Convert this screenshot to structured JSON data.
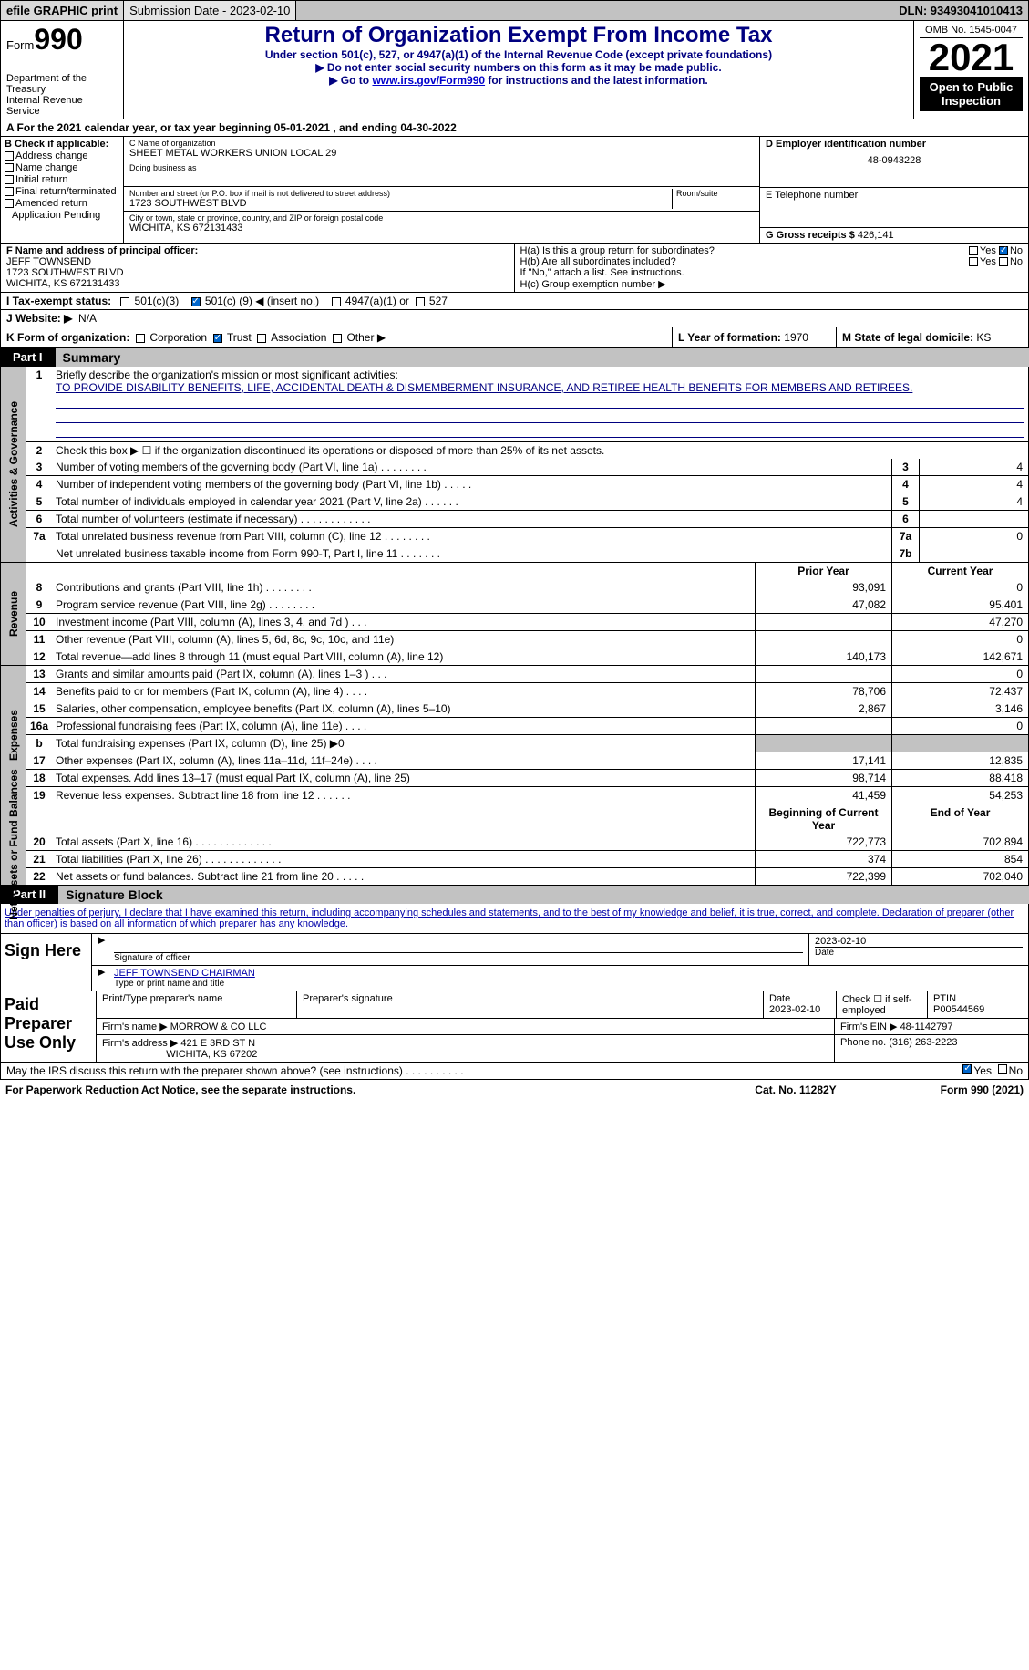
{
  "topbar": {
    "efile": "efile GRAPHIC print",
    "submission_label": "Submission Date - 2023-02-10",
    "dln": "DLN: 93493041010413"
  },
  "header": {
    "form_word": "Form",
    "form_num": "990",
    "dept": "Department of the Treasury",
    "irs": "Internal Revenue Service",
    "title": "Return of Organization Exempt From Income Tax",
    "sub1": "Under section 501(c), 527, or 4947(a)(1) of the Internal Revenue Code (except private foundations)",
    "sub2": "▶ Do not enter social security numbers on this form as it may be made public.",
    "sub3a": "▶ Go to ",
    "sub3b": "www.irs.gov/Form990",
    "sub3c": " for instructions and the latest information.",
    "omb": "OMB No. 1545-0047",
    "year": "2021",
    "otp": "Open to Public Inspection"
  },
  "lineA": "A For the 2021 calendar year, or tax year beginning 05-01-2021    , and ending 04-30-2022",
  "sectionB": {
    "b_title": "B Check if applicable:",
    "checks": [
      "Address change",
      "Name change",
      "Initial return",
      "Final return/terminated",
      "Amended return",
      "Application Pending"
    ],
    "c_label": "C Name of organization",
    "c_name": "SHEET METAL WORKERS UNION LOCAL 29",
    "dba_label": "Doing business as",
    "addr_label": "Number and street (or P.O. box if mail is not delivered to street address)",
    "room_label": "Room/suite",
    "addr": "1723 SOUTHWEST BLVD",
    "city_label": "City or town, state or province, country, and ZIP or foreign postal code",
    "city": "WICHITA, KS  672131433",
    "d_label": "D Employer identification number",
    "ein": "48-0943228",
    "e_label": "E Telephone number",
    "g_label": "G Gross receipts $",
    "g_val": "426,141"
  },
  "rowF": {
    "f_label": "F  Name and address of principal officer:",
    "officer": "JEFF TOWNSEND",
    "addr1": "1723 SOUTHWEST BLVD",
    "addr2": "WICHITA, KS  672131433",
    "ha": "H(a)  Is this a group return for subordinates?",
    "hb": "H(b)  Are all subordinates included?",
    "hb_note": "If \"No,\" attach a list. See instructions.",
    "hc": "H(c)  Group exemption number ▶",
    "yes": "Yes",
    "no": "No"
  },
  "rowI": {
    "label": "I    Tax-exempt status:",
    "o1": "501(c)(3)",
    "o2a": "501(c) (",
    "o2b": "9",
    "o2c": ") ◀ (insert no.)",
    "o3": "4947(a)(1) or",
    "o4": "527"
  },
  "rowJ": {
    "label": "J   Website: ▶",
    "val": "N/A"
  },
  "rowK": {
    "k": "K Form of organization:",
    "corp": "Corporation",
    "trust": "Trust",
    "assoc": "Association",
    "other": "Other ▶",
    "l": "L Year of formation:",
    "l_val": "1970",
    "m": "M State of legal domicile:",
    "m_val": "KS"
  },
  "part1": {
    "part": "Part I",
    "title": "Summary"
  },
  "summary": {
    "l1_label": "Briefly describe the organization's mission or most significant activities:",
    "l1_text": "TO PROVIDE DISABILITY BENEFITS, LIFE, ACCIDENTAL DEATH & DISMEMBERMENT INSURANCE, AND RETIREE HEALTH BENEFITS FOR MEMBERS AND RETIREES.",
    "l2": "Check this box ▶ ☐ if the organization discontinued its operations or disposed of more than 25% of its net assets.",
    "lines": [
      {
        "n": "3",
        "t": "Number of voting members of the governing body (Part VI, line 1a)  .    .    .    .    .    .    .    .",
        "b": "3",
        "v": "4"
      },
      {
        "n": "4",
        "t": "Number of independent voting members of the governing body (Part VI, line 1b)  .    .    .    .    .",
        "b": "4",
        "v": "4"
      },
      {
        "n": "5",
        "t": "Total number of individuals employed in calendar year 2021 (Part V, line 2a)  .    .    .    .    .    .",
        "b": "5",
        "v": "4"
      },
      {
        "n": "6",
        "t": "Total number of volunteers (estimate if necessary)    .    .    .    .    .    .    .    .    .    .    .    .",
        "b": "6",
        "v": ""
      },
      {
        "n": "7a",
        "t": "Total unrelated business revenue from Part VIII, column (C), line 12    .    .    .    .    .    .    .    .",
        "b": "7a",
        "v": "0"
      },
      {
        "n": "",
        "t": "Net unrelated business taxable income from Form 990-T, Part I, line 11  .    .    .    .    .    .    .",
        "b": "7b",
        "v": ""
      }
    ],
    "col_prior": "Prior Year",
    "col_current": "Current Year",
    "rev": [
      {
        "n": "8",
        "t": "Contributions and grants (Part VIII, line 1h)   .    .    .    .    .    .    .    .",
        "p": "93,091",
        "c": "0"
      },
      {
        "n": "9",
        "t": "Program service revenue (Part VIII, line 2g)  .    .    .    .    .    .    .    .",
        "p": "47,082",
        "c": "95,401"
      },
      {
        "n": "10",
        "t": "Investment income (Part VIII, column (A), lines 3, 4, and 7d )   .    .    .",
        "p": "",
        "c": "47,270"
      },
      {
        "n": "11",
        "t": "Other revenue (Part VIII, column (A), lines 5, 6d, 8c, 9c, 10c, and 11e)",
        "p": "",
        "c": "0"
      },
      {
        "n": "12",
        "t": "Total revenue—add lines 8 through 11 (must equal Part VIII, column (A), line 12)",
        "p": "140,173",
        "c": "142,671"
      }
    ],
    "exp": [
      {
        "n": "13",
        "t": "Grants and similar amounts paid (Part IX, column (A), lines 1–3 )  .    .    .",
        "p": "",
        "c": "0"
      },
      {
        "n": "14",
        "t": "Benefits paid to or for members (Part IX, column (A), line 4)  .    .    .    .",
        "p": "78,706",
        "c": "72,437"
      },
      {
        "n": "15",
        "t": "Salaries, other compensation, employee benefits (Part IX, column (A), lines 5–10)",
        "p": "2,867",
        "c": "3,146"
      },
      {
        "n": "16a",
        "t": "Professional fundraising fees (Part IX, column (A), line 11e)  .    .    .    .",
        "p": "",
        "c": "0"
      },
      {
        "n": "b",
        "t": "Total fundraising expenses (Part IX, column (D), line 25) ▶0",
        "p": "shade",
        "c": "shade"
      },
      {
        "n": "17",
        "t": "Other expenses (Part IX, column (A), lines 11a–11d, 11f–24e)  .    .    .    .",
        "p": "17,141",
        "c": "12,835"
      },
      {
        "n": "18",
        "t": "Total expenses. Add lines 13–17 (must equal Part IX, column (A), line 25)",
        "p": "98,714",
        "c": "88,418"
      },
      {
        "n": "19",
        "t": "Revenue less expenses. Subtract line 18 from line 12  .    .    .    .    .    .",
        "p": "41,459",
        "c": "54,253"
      }
    ],
    "col_beg": "Beginning of Current Year",
    "col_end": "End of Year",
    "net": [
      {
        "n": "20",
        "t": "Total assets (Part X, line 16)  .    .    .    .    .    .    .    .    .    .    .    .    .",
        "p": "722,773",
        "c": "702,894"
      },
      {
        "n": "21",
        "t": "Total liabilities (Part X, line 26)  .    .    .    .    .    .    .    .    .    .    .    .    .",
        "p": "374",
        "c": "854"
      },
      {
        "n": "22",
        "t": "Net assets or fund balances. Subtract line 21 from line 20  .    .    .    .    .",
        "p": "722,399",
        "c": "702,040"
      }
    ]
  },
  "part2": {
    "part": "Part II",
    "title": "Signature Block"
  },
  "sig": {
    "decl": "Under penalties of perjury, I declare that I have examined this return, including accompanying schedules and statements, and to the best of my knowledge and belief, it is true, correct, and complete. Declaration of preparer (other than officer) is based on all information of which preparer has any knowledge.",
    "sign_here": "Sign Here",
    "sig_officer": "Signature of officer",
    "date": "Date",
    "sig_date": "2023-02-10",
    "name_title": "JEFF TOWNSEND  CHAIRMAN",
    "name_label": "Type or print name and title"
  },
  "paid": {
    "title": "Paid Preparer Use Only",
    "h1": "Print/Type preparer's name",
    "h2": "Preparer's signature",
    "h3": "Date",
    "h3v": "2023-02-10",
    "h4": "Check ☐ if self-employed",
    "h5": "PTIN",
    "h5v": "P00544569",
    "firm_label": "Firm's name      ▶",
    "firm": "MORROW & CO LLC",
    "firm_ein_label": "Firm's EIN ▶",
    "firm_ein": "48-1142797",
    "addr_label": "Firm's address ▶",
    "addr1": "421 E 3RD ST N",
    "addr2": "WICHITA, KS  67202",
    "phone_label": "Phone no.",
    "phone": "(316) 263-2223"
  },
  "bottom": {
    "q": "May the IRS discuss this return with the preparer shown above? (see instructions)   .    .    .    .    .    .    .    .    .    .",
    "yes": "Yes",
    "no": "No"
  },
  "footer": {
    "left": "For Paperwork Reduction Act Notice, see the separate instructions.",
    "mid": "Cat. No. 11282Y",
    "right": "Form 990 (2021)"
  },
  "vtabs": {
    "gov": "Activities & Governance",
    "rev": "Revenue",
    "exp": "Expenses",
    "net": "Net Assets or Fund Balances"
  }
}
